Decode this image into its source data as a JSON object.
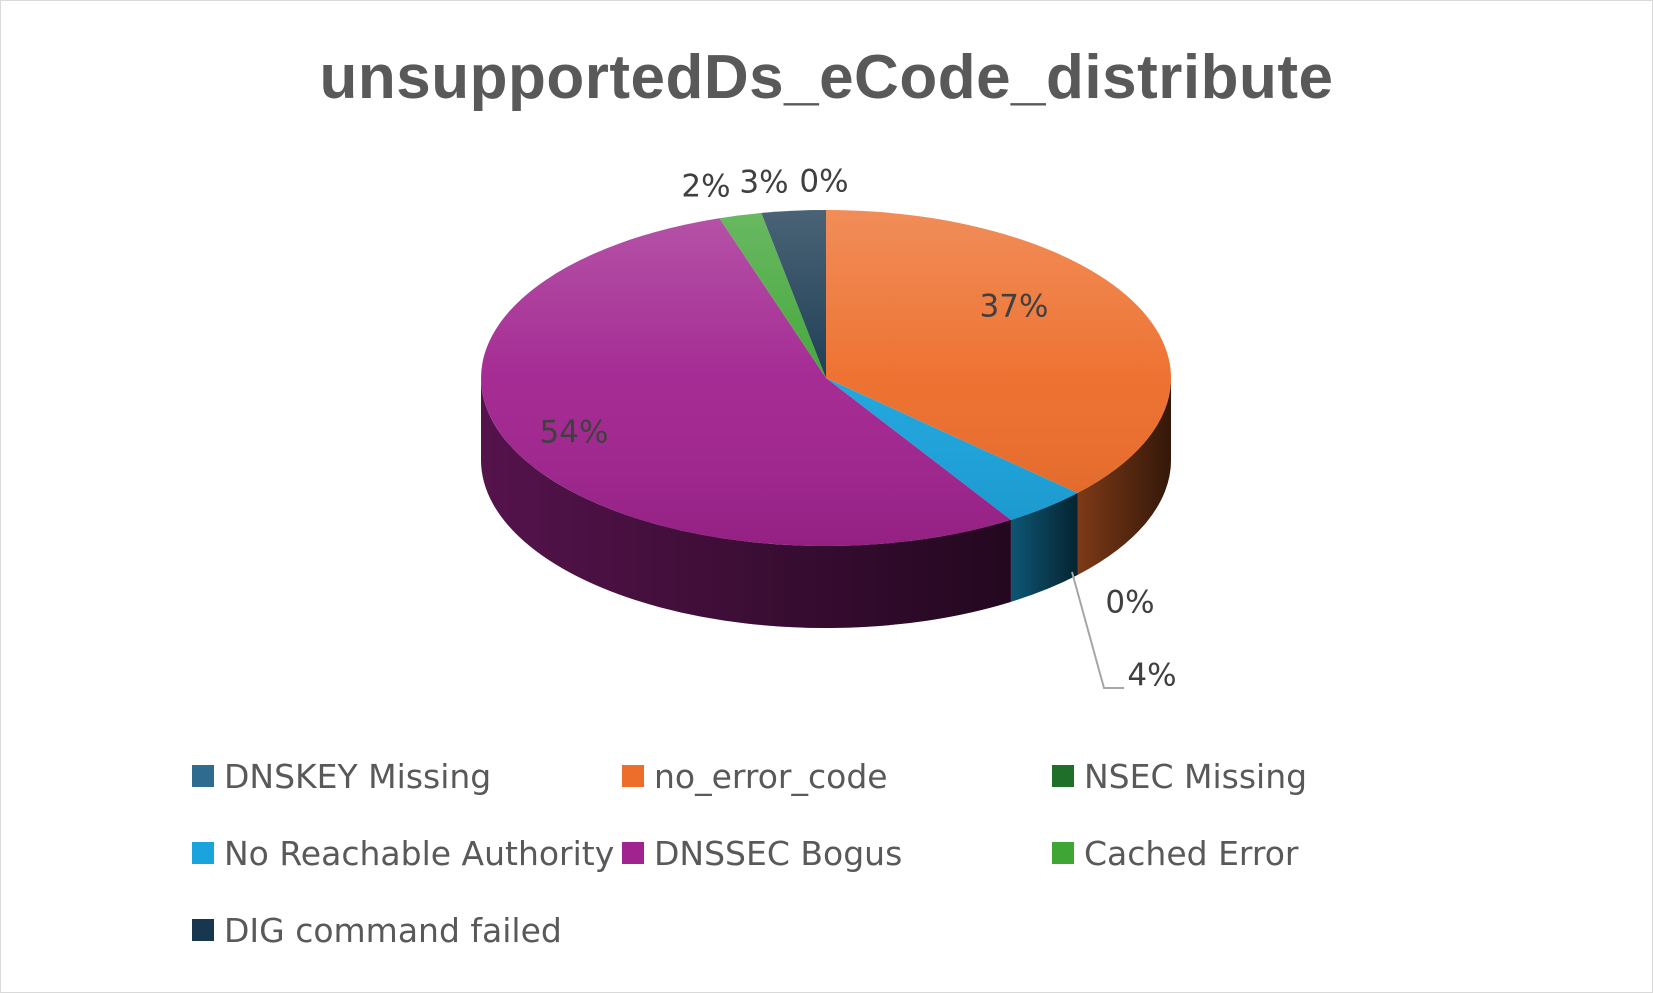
{
  "chart_data": {
    "type": "pie",
    "title": "unsupportedDs_eCode_distribute",
    "slices": [
      {
        "name": "DNSKEY Missing",
        "value": 0,
        "label": "0%",
        "color": "#2e6b8e"
      },
      {
        "name": "no_error_code",
        "value": 37,
        "label": "37%",
        "color": "#ed6d2a"
      },
      {
        "name": "NSEC Missing",
        "value": 0,
        "label": "0%",
        "color": "#1f6f2a"
      },
      {
        "name": "No Reachable Authority",
        "value": 4,
        "label": "4%",
        "color": "#1aa3dc"
      },
      {
        "name": "DNSSEC Bogus",
        "value": 54,
        "label": "54%",
        "color": "#a1238f"
      },
      {
        "name": "Cached Error",
        "value": 2,
        "label": "2%",
        "color": "#3fa535"
      },
      {
        "name": "DIG command failed",
        "value": 3,
        "label": "3%",
        "color": "#17374f"
      }
    ],
    "legend_position": "bottom"
  }
}
